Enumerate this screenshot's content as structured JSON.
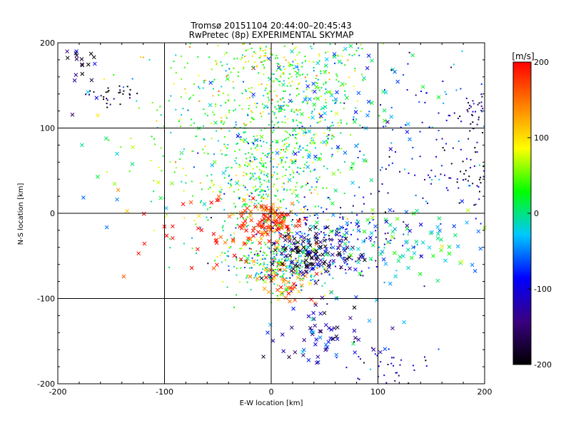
{
  "chart_data": {
    "type": "scatter",
    "title_line1": "Tromsø 20151104 20:44:00–20:45:43",
    "title_line2": "RwPretec (8p) EXPERIMENTAL SKYMAP",
    "xlabel": "E-W location [km]",
    "ylabel": "N-S location [km]",
    "xlim": [
      -200,
      200
    ],
    "ylim": [
      -200,
      200
    ],
    "x_ticks": [
      "-200",
      "-100",
      "0",
      "100",
      "200"
    ],
    "y_ticks": [
      "-200",
      "-100",
      "0",
      "100",
      "200"
    ],
    "grid": true,
    "marker_types": [
      "dot",
      "cross"
    ],
    "colorbar": {
      "label": "[m/s]",
      "range": [
        -200,
        200
      ],
      "ticks": [
        "200",
        "100",
        "0",
        "-100",
        "-200"
      ],
      "colormap": [
        "#000000",
        "#3a0080",
        "#0000ff",
        "#00c8ff",
        "#00ff00",
        "#ffff00",
        "#ff8000",
        "#ff0000"
      ]
    },
    "clusters": [
      {
        "name": "northwest",
        "center": [
          -180,
          180
        ],
        "spread": [
          10,
          8
        ],
        "velocity": -200,
        "count": 12,
        "marker": "cross"
      },
      {
        "name": "northwest-2",
        "center": [
          -150,
          140
        ],
        "spread": [
          12,
          6
        ],
        "velocity": -200,
        "count": 30,
        "marker": "dot"
      },
      {
        "name": "northwest-3",
        "center": [
          -175,
          140
        ],
        "spread": [
          12,
          20
        ],
        "velocity": -100,
        "count": 8,
        "marker": "cross"
      },
      {
        "name": "west-sparse",
        "center": [
          -140,
          40
        ],
        "spread": [
          40,
          50
        ],
        "velocity": 0,
        "count": 18,
        "marker": "cross"
      },
      {
        "name": "north-center",
        "center": [
          20,
          120
        ],
        "spread": [
          40,
          50
        ],
        "velocity": 20,
        "count": 380,
        "marker": "dot"
      },
      {
        "name": "north-center-cross",
        "center": [
          40,
          130
        ],
        "spread": [
          50,
          50
        ],
        "velocity": -30,
        "count": 120,
        "marker": "cross"
      },
      {
        "name": "north-upper",
        "center": [
          0,
          175
        ],
        "spread": [
          40,
          20
        ],
        "velocity": 60,
        "count": 150,
        "marker": "dot"
      },
      {
        "name": "center-green",
        "center": [
          -10,
          40
        ],
        "spread": [
          30,
          40
        ],
        "velocity": 20,
        "count": 400,
        "marker": "dot"
      },
      {
        "name": "center-red",
        "center": [
          0,
          -10
        ],
        "spread": [
          15,
          12
        ],
        "velocity": 180,
        "count": 120,
        "marker": "cross"
      },
      {
        "name": "center-orange",
        "center": [
          15,
          -80
        ],
        "spread": [
          15,
          15
        ],
        "velocity": 150,
        "count": 60,
        "marker": "cross"
      },
      {
        "name": "center-south-green",
        "center": [
          5,
          -60
        ],
        "spread": [
          25,
          15
        ],
        "velocity": 10,
        "count": 250,
        "marker": "dot"
      },
      {
        "name": "center-east-purple",
        "center": [
          40,
          -45
        ],
        "spread": [
          20,
          12
        ],
        "velocity": -170,
        "count": 120,
        "marker": "cross"
      },
      {
        "name": "center-blue",
        "center": [
          50,
          -35
        ],
        "spread": [
          35,
          25
        ],
        "velocity": -90,
        "count": 220,
        "marker": "dot"
      },
      {
        "name": "east-cyan",
        "center": [
          100,
          -30
        ],
        "spread": [
          60,
          25
        ],
        "velocity": -20,
        "count": 120,
        "marker": "cross"
      },
      {
        "name": "south-blue",
        "center": [
          50,
          -140
        ],
        "spread": [
          25,
          20
        ],
        "velocity": -110,
        "count": 70,
        "marker": "cross"
      },
      {
        "name": "south-east-blue",
        "center": [
          110,
          -180
        ],
        "spread": [
          20,
          15
        ],
        "velocity": -120,
        "count": 40,
        "marker": "dot"
      },
      {
        "name": "east-blue",
        "center": [
          150,
          80
        ],
        "spread": [
          40,
          60
        ],
        "velocity": -90,
        "count": 140,
        "marker": "dot"
      },
      {
        "name": "east-purple",
        "center": [
          190,
          120
        ],
        "spread": [
          10,
          15
        ],
        "velocity": -160,
        "count": 40,
        "marker": "dot"
      },
      {
        "name": "east-black",
        "center": [
          185,
          50
        ],
        "spread": [
          10,
          20
        ],
        "velocity": -200,
        "count": 30,
        "marker": "dot"
      },
      {
        "name": "west-red-scatter",
        "center": [
          -70,
          -30
        ],
        "spread": [
          35,
          25
        ],
        "velocity": 190,
        "count": 40,
        "marker": "cross"
      },
      {
        "name": "west-green",
        "center": [
          -60,
          90
        ],
        "spread": [
          40,
          60
        ],
        "velocity": 40,
        "count": 150,
        "marker": "dot"
      }
    ]
  }
}
